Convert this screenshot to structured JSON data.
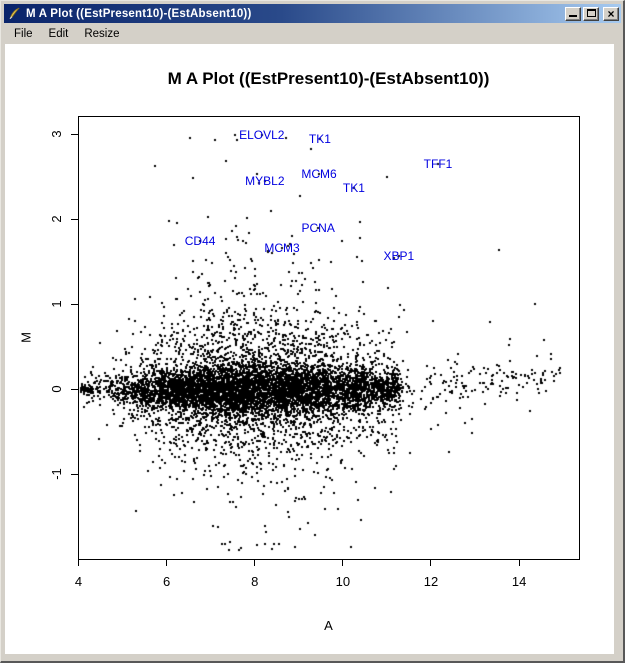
{
  "window": {
    "title": "M A Plot ((EstPresent10)-(EstAbsent10))",
    "controls": {
      "minimize": "minimize",
      "maximize": "maximize",
      "close": "close"
    }
  },
  "menu": {
    "items": [
      {
        "label": "File"
      },
      {
        "label": "Edit"
      },
      {
        "label": "Resize"
      }
    ]
  },
  "colors": {
    "titlebar_left": "#0a246a",
    "titlebar_right": "#a6caf0",
    "chrome": "#d4d0c8",
    "plot_bg": "#ffffff",
    "point": "#000000",
    "gene_label": "#0000e0"
  },
  "chart_data": {
    "type": "scatter",
    "title": "M A Plot ((EstPresent10)-(EstAbsent10))",
    "xlabel": "A",
    "ylabel": "M",
    "xlim": [
      4.0,
      15.4
    ],
    "ylim": [
      -2.0,
      3.2
    ],
    "x_ticks": [
      4,
      6,
      8,
      10,
      12,
      14
    ],
    "y_ticks": [
      3,
      2,
      1,
      0,
      -1
    ],
    "grid": false,
    "legend": null,
    "labeled_points": [
      {
        "gene": "ELOVL2",
        "a": 8.16,
        "m": 2.99
      },
      {
        "gene": "TK1",
        "a": 9.48,
        "m": 2.94
      },
      {
        "gene": "TFF1",
        "a": 12.16,
        "m": 2.65
      },
      {
        "gene": "MCM6",
        "a": 9.46,
        "m": 2.53
      },
      {
        "gene": "MYBL2",
        "a": 8.23,
        "m": 2.45
      },
      {
        "gene": "TK1",
        "a": 10.25,
        "m": 2.36
      },
      {
        "gene": "PCNA",
        "a": 9.44,
        "m": 1.89
      },
      {
        "gene": "CD44",
        "a": 6.76,
        "m": 1.74
      },
      {
        "gene": "MCM3",
        "a": 8.62,
        "m": 1.66
      },
      {
        "gene": "XBP1",
        "a": 11.27,
        "m": 1.56
      }
    ],
    "cloud": {
      "description": "approx 8000 unlabeled probe points: dense black band at M~0 for A 4.5-10.5, sparse tail to A~15, spread widest near A~8, upper outliers to M~3, lower to M~-1.9",
      "seed": 7,
      "n_points": 8000,
      "a_components": [
        {
          "weight": 0.74,
          "type": "triangular",
          "min": 4.45,
          "span": 6.1,
          "stray_p": 0.012,
          "stray_min": 4.05,
          "stray_span": 0.45
        },
        {
          "weight": 0.21,
          "type": "uniform",
          "min": 8.6,
          "span": 2.7
        },
        {
          "weight": 0.05,
          "type": "power_tail",
          "min": 10.3,
          "span": 4.65,
          "exp": 2.4
        }
      ],
      "m_center": -0.01,
      "m_center_highA_start": 11,
      "m_center_highA_slope": 0.04,
      "spread": {
        "base": 0.11,
        "bump": 0.09,
        "bump_center": 8.3,
        "bump_width": 5.5,
        "lowA_knee": 5.6,
        "lowA_floor": 0.45
      },
      "tail_mix": [
        {
          "p": 0.6,
          "mult": 0.8
        },
        {
          "p": 0.26,
          "mult": 2.2
        },
        {
          "p": 0.105,
          "mult": 4.2
        },
        {
          "p": 0.035,
          "mult": 7.5
        }
      ],
      "neg_damp": 0.75,
      "m_min": -1.9,
      "m_max": 3.0
    }
  }
}
